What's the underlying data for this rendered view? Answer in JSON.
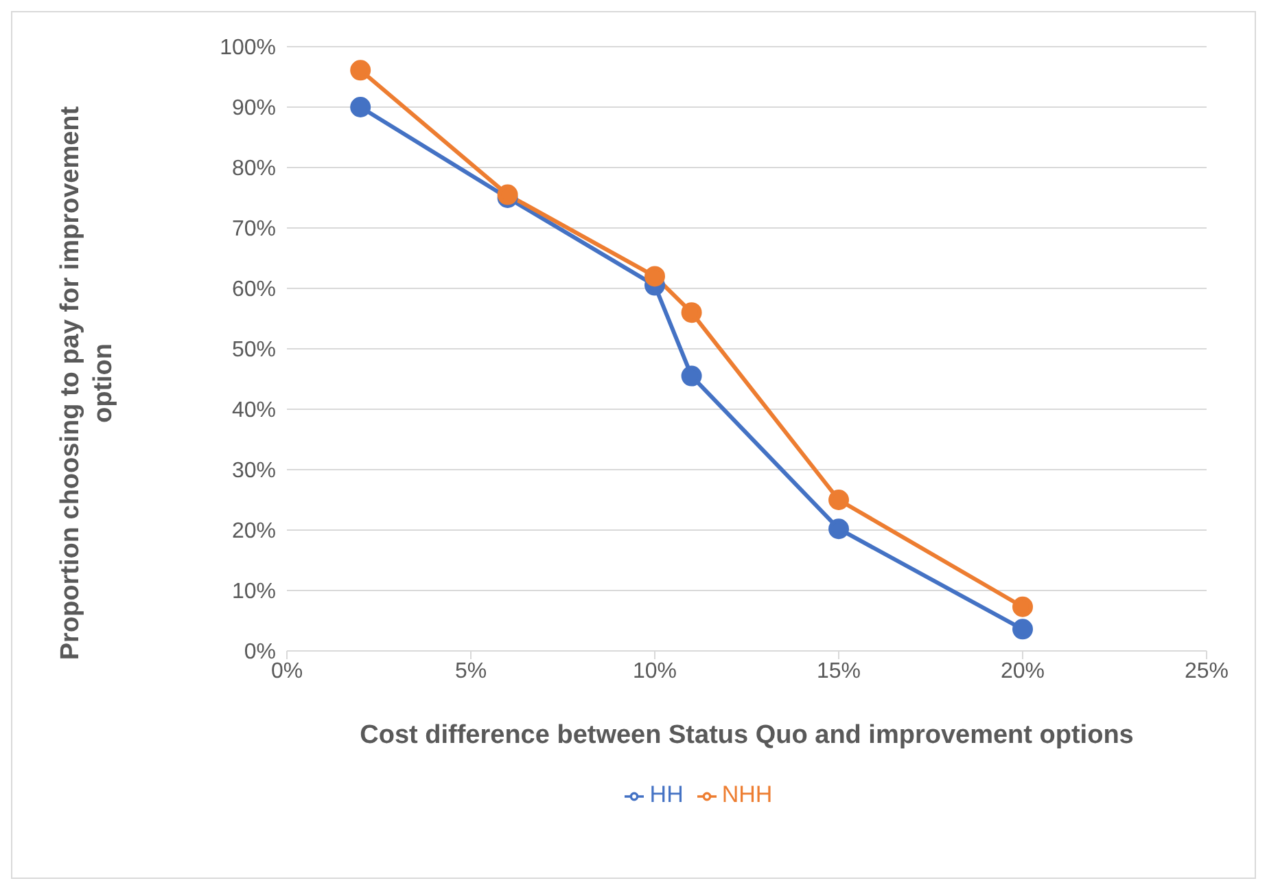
{
  "chart_data": {
    "type": "line",
    "xlabel": "Cost difference between Status Quo and improvement options",
    "ylabel": "Proportion choosing to pay for improvement option",
    "x": [
      2,
      6,
      10,
      11,
      15,
      20
    ],
    "series": [
      {
        "name": "HH",
        "color": "#4472c4",
        "values": [
          90,
          75,
          60.5,
          45.5,
          20.2,
          3.6
        ]
      },
      {
        "name": "NHH",
        "color": "#ed7d31",
        "values": [
          96.1,
          75.5,
          62,
          56,
          25,
          7.3
        ]
      }
    ],
    "xlim": [
      0,
      25
    ],
    "xticks": [
      {
        "value": 0,
        "label": "0%"
      },
      {
        "value": 5,
        "label": "5%"
      },
      {
        "value": 10,
        "label": "10%"
      },
      {
        "value": 15,
        "label": "15%"
      },
      {
        "value": 20,
        "label": "20%"
      },
      {
        "value": 25,
        "label": "25%"
      }
    ],
    "ylim": [
      0,
      100
    ],
    "yticks": [
      {
        "value": 0,
        "label": "0%"
      },
      {
        "value": 10,
        "label": "10%"
      },
      {
        "value": 20,
        "label": "20%"
      },
      {
        "value": 30,
        "label": "30%"
      },
      {
        "value": 40,
        "label": "40%"
      },
      {
        "value": 50,
        "label": "50%"
      },
      {
        "value": 60,
        "label": "60%"
      },
      {
        "value": 70,
        "label": "70%"
      },
      {
        "value": 80,
        "label": "80%"
      },
      {
        "value": 90,
        "label": "90%"
      },
      {
        "value": 100,
        "label": "100%"
      }
    ],
    "grid": "y",
    "legend": "bottom",
    "marker": "circle",
    "line_style": "solid"
  }
}
